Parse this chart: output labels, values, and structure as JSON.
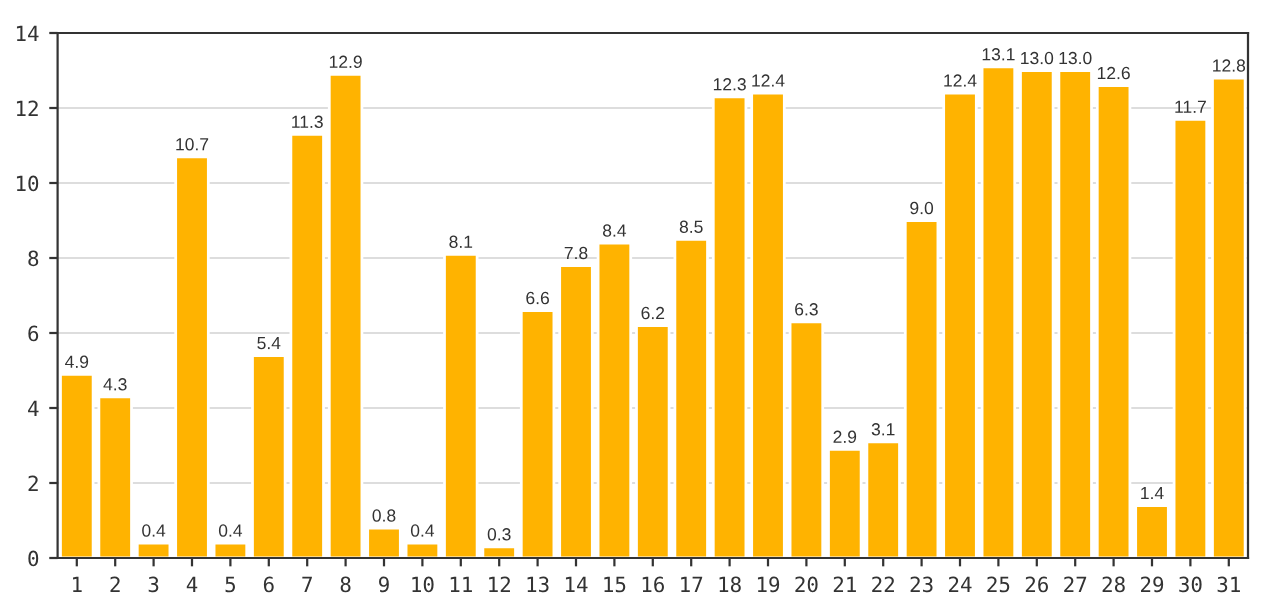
{
  "chart_data": {
    "type": "bar",
    "categories": [
      "1",
      "2",
      "3",
      "4",
      "5",
      "6",
      "7",
      "8",
      "9",
      "10",
      "11",
      "12",
      "13",
      "14",
      "15",
      "16",
      "17",
      "18",
      "19",
      "20",
      "21",
      "22",
      "23",
      "24",
      "25",
      "26",
      "27",
      "28",
      "29",
      "30",
      "31"
    ],
    "values": [
      4.9,
      4.3,
      0.4,
      10.7,
      0.4,
      5.4,
      11.3,
      12.9,
      0.8,
      0.4,
      8.1,
      0.3,
      6.6,
      7.8,
      8.4,
      6.2,
      8.5,
      12.3,
      12.4,
      6.3,
      2.9,
      3.1,
      9.0,
      12.4,
      13.1,
      13.0,
      13.0,
      12.6,
      1.4,
      11.7,
      12.8
    ],
    "value_labels": [
      "4.9",
      "4.3",
      "0.4",
      "10.7",
      "0.4",
      "5.4",
      "11.3",
      "12.9",
      "0.8",
      "0.4",
      "8.1",
      "0.3",
      "6.6",
      "7.8",
      "8.4",
      "6.2",
      "8.5",
      "12.3",
      "12.4",
      "6.3",
      "2.9",
      "3.1",
      "9.0",
      "12.4",
      "13.1",
      "13.0",
      "13.0",
      "12.6",
      "1.4",
      "11.7",
      "12.8"
    ],
    "color": "#ffb300",
    "ylim": [
      0,
      14
    ],
    "yticks": [
      0,
      2,
      4,
      6,
      8,
      10,
      12,
      14
    ],
    "grid": "y"
  }
}
